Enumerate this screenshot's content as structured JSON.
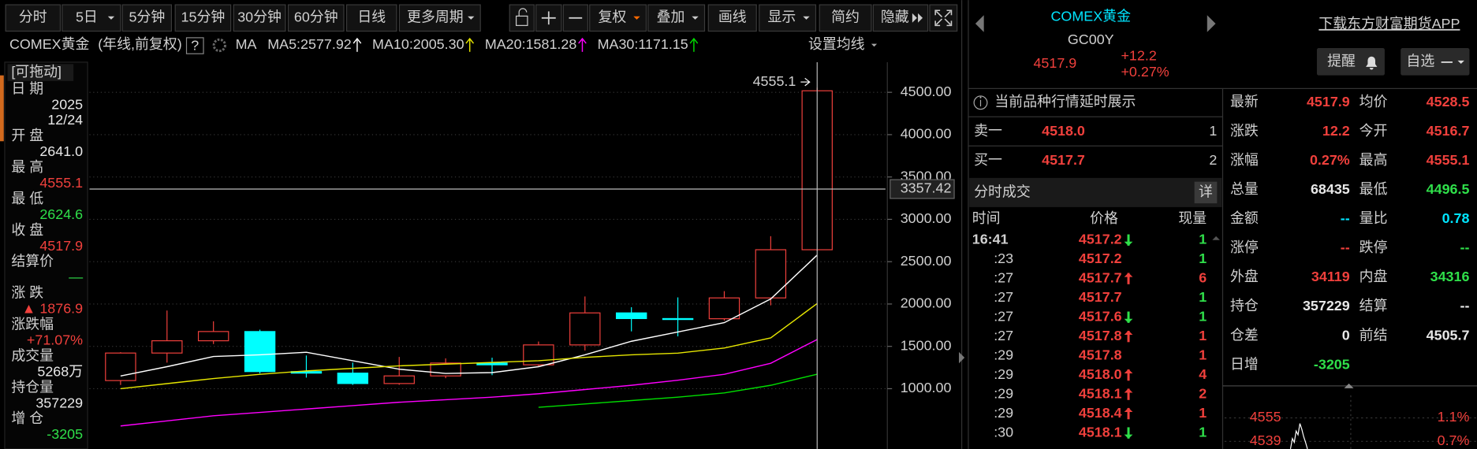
{
  "toolbar": {
    "periods": [
      "分时",
      "5日",
      "5分钟",
      "15分钟",
      "30分钟",
      "60分钟",
      "日线",
      "更多周期"
    ],
    "tools": [
      "复权",
      "叠加",
      "画线",
      "显示",
      "简约",
      "隐藏"
    ]
  },
  "chart_header": {
    "name": "COMEX黄金",
    "mode": "(年线,前复权)",
    "help": "?",
    "ma_label": "MA",
    "settings": "设置均线"
  },
  "info_panel": {
    "drag": "[可拖动]",
    "fields": [
      {
        "label": "日 期",
        "values": [
          "2025",
          "12/24"
        ],
        "tone": "flat"
      },
      {
        "label": "开 盘",
        "values": [
          "2641.0"
        ],
        "tone": "flat"
      },
      {
        "label": "最 高",
        "values": [
          "4555.1"
        ],
        "tone": "up"
      },
      {
        "label": "最 低",
        "values": [
          "2624.6"
        ],
        "tone": "down"
      },
      {
        "label": "收 盘",
        "values": [
          "4517.9"
        ],
        "tone": "up"
      },
      {
        "label": "结算价",
        "values": [
          "—"
        ],
        "tone": "down"
      },
      {
        "label": "涨 跌",
        "values": [
          "▲ 1876.9"
        ],
        "tone": "up"
      },
      {
        "label": "涨跌幅",
        "values": [
          "+71.07%"
        ],
        "tone": "up"
      },
      {
        "label": "成交量",
        "values": [
          "5268万"
        ],
        "tone": "flat"
      },
      {
        "label": "持仓量",
        "values": [
          "357229"
        ],
        "tone": "flat"
      },
      {
        "label": "增 仓",
        "values": [
          "-3205"
        ],
        "tone": "down"
      }
    ]
  },
  "chart_data": {
    "type": "candlestick",
    "open": [
      1096,
      1421,
      1566,
      1675,
      1202,
      1184,
      1061,
      1151,
      1303,
      1282,
      1517,
      1895,
      1828,
      1826,
      2072,
      2641.0
    ],
    "high": [
      1431,
      1923,
      1796,
      1697,
      1392,
      1308,
      1375,
      1358,
      1366,
      1557,
      2089,
      1962,
      2078,
      2152,
      2801,
      4555.1
    ],
    "low": [
      1044,
      1308,
      1527,
      1180,
      1131,
      1045,
      1046,
      1124,
      1160,
      1266,
      1451,
      1677,
      1618,
      1805,
      1984,
      2624.6
    ],
    "close": [
      1421,
      1566,
      1675,
      1202,
      1184,
      1061,
      1151,
      1303,
      1282,
      1517,
      1895,
      1828,
      1826,
      2072,
      2641,
      4517.9
    ],
    "up_color": "#f0403c",
    "down_color": "#00ffff",
    "series": [
      {
        "label": "MA5:2577.92",
        "color": "#ffffff",
        "values": [
          1150,
          1260,
          1380,
          1400,
          1430,
          1330,
          1230,
          1180,
          1190,
          1260,
          1400,
          1560,
          1670,
          1780,
          2060,
          2577.92
        ]
      },
      {
        "label": "MA10:2005.30",
        "color": "#e6e600",
        "values": [
          1000,
          1060,
          1120,
          1170,
          1210,
          1240,
          1270,
          1290,
          1310,
          1330,
          1370,
          1400,
          1420,
          1480,
          1600,
          2005.3
        ]
      },
      {
        "label": "MA20:1581.28",
        "color": "#ff00ff",
        "values": [
          560,
          620,
          680,
          720,
          760,
          800,
          840,
          870,
          900,
          940,
          990,
          1040,
          1100,
          1170,
          1300,
          1581.28
        ]
      },
      {
        "label": "MA30:1171.15",
        "color": "#00dd00",
        "values": [
          null,
          null,
          null,
          null,
          null,
          null,
          null,
          null,
          null,
          780,
          820,
          860,
          900,
          950,
          1040,
          1171.15
        ]
      }
    ],
    "ylim": [
      300,
      4850
    ],
    "yticks": [
      {
        "value": 4500,
        "label": "4500.00"
      },
      {
        "value": 4000,
        "label": "4000.00"
      },
      {
        "value": 3500,
        "label": "3500.00"
      },
      {
        "value": 3000,
        "label": "3000.00"
      },
      {
        "value": 2500,
        "label": "2500.00"
      },
      {
        "value": 2000,
        "label": "2000.00"
      },
      {
        "value": 1500,
        "label": "1500.00"
      },
      {
        "value": 1000,
        "label": "1000.00"
      }
    ],
    "grid": true,
    "crosshair": 3357.42
  },
  "quote": {
    "name": "COMEX黄金",
    "code": "GC00Y",
    "price": "4517.9",
    "change": "+12.2",
    "change_pct": "+0.27%",
    "download": "下载东方财富期货APP",
    "alert": "提醒",
    "watch": "自选"
  },
  "notice": "当前品种行情延时展示",
  "order_book": [
    {
      "side": "卖一",
      "price": "4518.0",
      "volume": "1"
    },
    {
      "side": "买一",
      "price": "4517.7",
      "volume": "2"
    }
  ],
  "trades": {
    "title": "分时成交",
    "detail": "详",
    "columns": [
      "时间",
      "价格",
      "现量"
    ],
    "rows": [
      {
        "time": "16:41",
        "price": "4517.2",
        "dir": "down",
        "volume": "1",
        "tone": "down"
      },
      {
        "time": ":23",
        "price": "4517.2",
        "dir": "none",
        "volume": "1",
        "tone": "down"
      },
      {
        "time": ":27",
        "price": "4517.7",
        "dir": "up",
        "volume": "6",
        "tone": "up"
      },
      {
        "time": ":27",
        "price": "4517.7",
        "dir": "none",
        "volume": "1",
        "tone": "down"
      },
      {
        "time": ":27",
        "price": "4517.6",
        "dir": "down",
        "volume": "1",
        "tone": "down"
      },
      {
        "time": ":27",
        "price": "4517.8",
        "dir": "up",
        "volume": "1",
        "tone": "up"
      },
      {
        "time": ":29",
        "price": "4517.8",
        "dir": "none",
        "volume": "1",
        "tone": "up"
      },
      {
        "time": ":29",
        "price": "4518.0",
        "dir": "up",
        "volume": "4",
        "tone": "up"
      },
      {
        "time": ":29",
        "price": "4518.1",
        "dir": "up",
        "volume": "2",
        "tone": "up"
      },
      {
        "time": ":29",
        "price": "4518.4",
        "dir": "up",
        "volume": "1",
        "tone": "up"
      },
      {
        "time": ":30",
        "price": "4518.1",
        "dir": "down",
        "volume": "1",
        "tone": "down"
      }
    ]
  },
  "stats": [
    [
      {
        "label": "最新",
        "value": "4517.9",
        "tone": "up"
      },
      {
        "label": "均价",
        "value": "4528.5",
        "tone": "up"
      }
    ],
    [
      {
        "label": "涨跌",
        "value": "12.2",
        "tone": "up"
      },
      {
        "label": "今开",
        "value": "4516.7",
        "tone": "up"
      }
    ],
    [
      {
        "label": "涨幅",
        "value": "0.27%",
        "tone": "up"
      },
      {
        "label": "最高",
        "value": "4555.1",
        "tone": "up"
      }
    ],
    [
      {
        "label": "总量",
        "value": "68435",
        "tone": "flat"
      },
      {
        "label": "最低",
        "value": "4496.5",
        "tone": "down"
      }
    ],
    [
      {
        "label": "金额",
        "value": "--",
        "tone": "cyan"
      },
      {
        "label": "量比",
        "value": "0.78",
        "tone": "cyan"
      }
    ],
    [
      {
        "label": "涨停",
        "value": "--",
        "tone": "up"
      },
      {
        "label": "跌停",
        "value": "--",
        "tone": "down"
      }
    ],
    [
      {
        "label": "外盘",
        "value": "34119",
        "tone": "up"
      },
      {
        "label": "内盘",
        "value": "34316",
        "tone": "down"
      }
    ],
    [
      {
        "label": "持仓",
        "value": "357229",
        "tone": "flat"
      },
      {
        "label": "结算",
        "value": "--",
        "tone": "flat"
      }
    ],
    [
      {
        "label": "仓差",
        "value": "0",
        "tone": "flat"
      },
      {
        "label": "前结",
        "value": "4505.7",
        "tone": "flat"
      }
    ],
    [
      {
        "label": "日增",
        "value": "-3205",
        "tone": "down"
      }
    ]
  ],
  "mini_chart": {
    "price_labels": [
      "4555",
      "4539"
    ],
    "pct_labels": [
      "1.1%",
      "0.7%"
    ]
  }
}
